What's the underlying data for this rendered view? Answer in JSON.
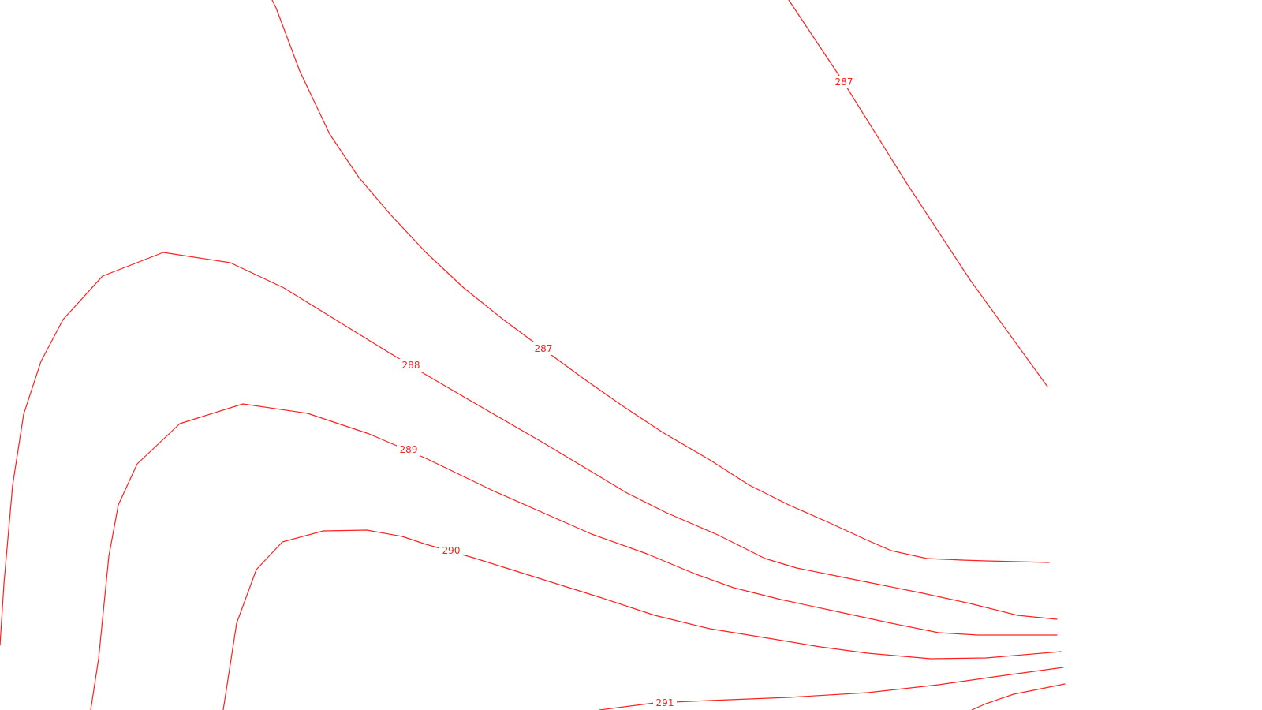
{
  "map": {
    "line_color": "#ff2020",
    "background_color": "#ffffff",
    "contours": [
      {
        "id": "contour-287-east",
        "label": "287"
      },
      {
        "id": "contour-287-west",
        "label": "287"
      },
      {
        "id": "contour-288",
        "label": "288"
      },
      {
        "id": "contour-289",
        "label": "289"
      },
      {
        "id": "contour-290",
        "label": "290"
      },
      {
        "id": "contour-291",
        "label": "291"
      },
      {
        "id": "contour-292-partial",
        "label": ""
      }
    ]
  }
}
